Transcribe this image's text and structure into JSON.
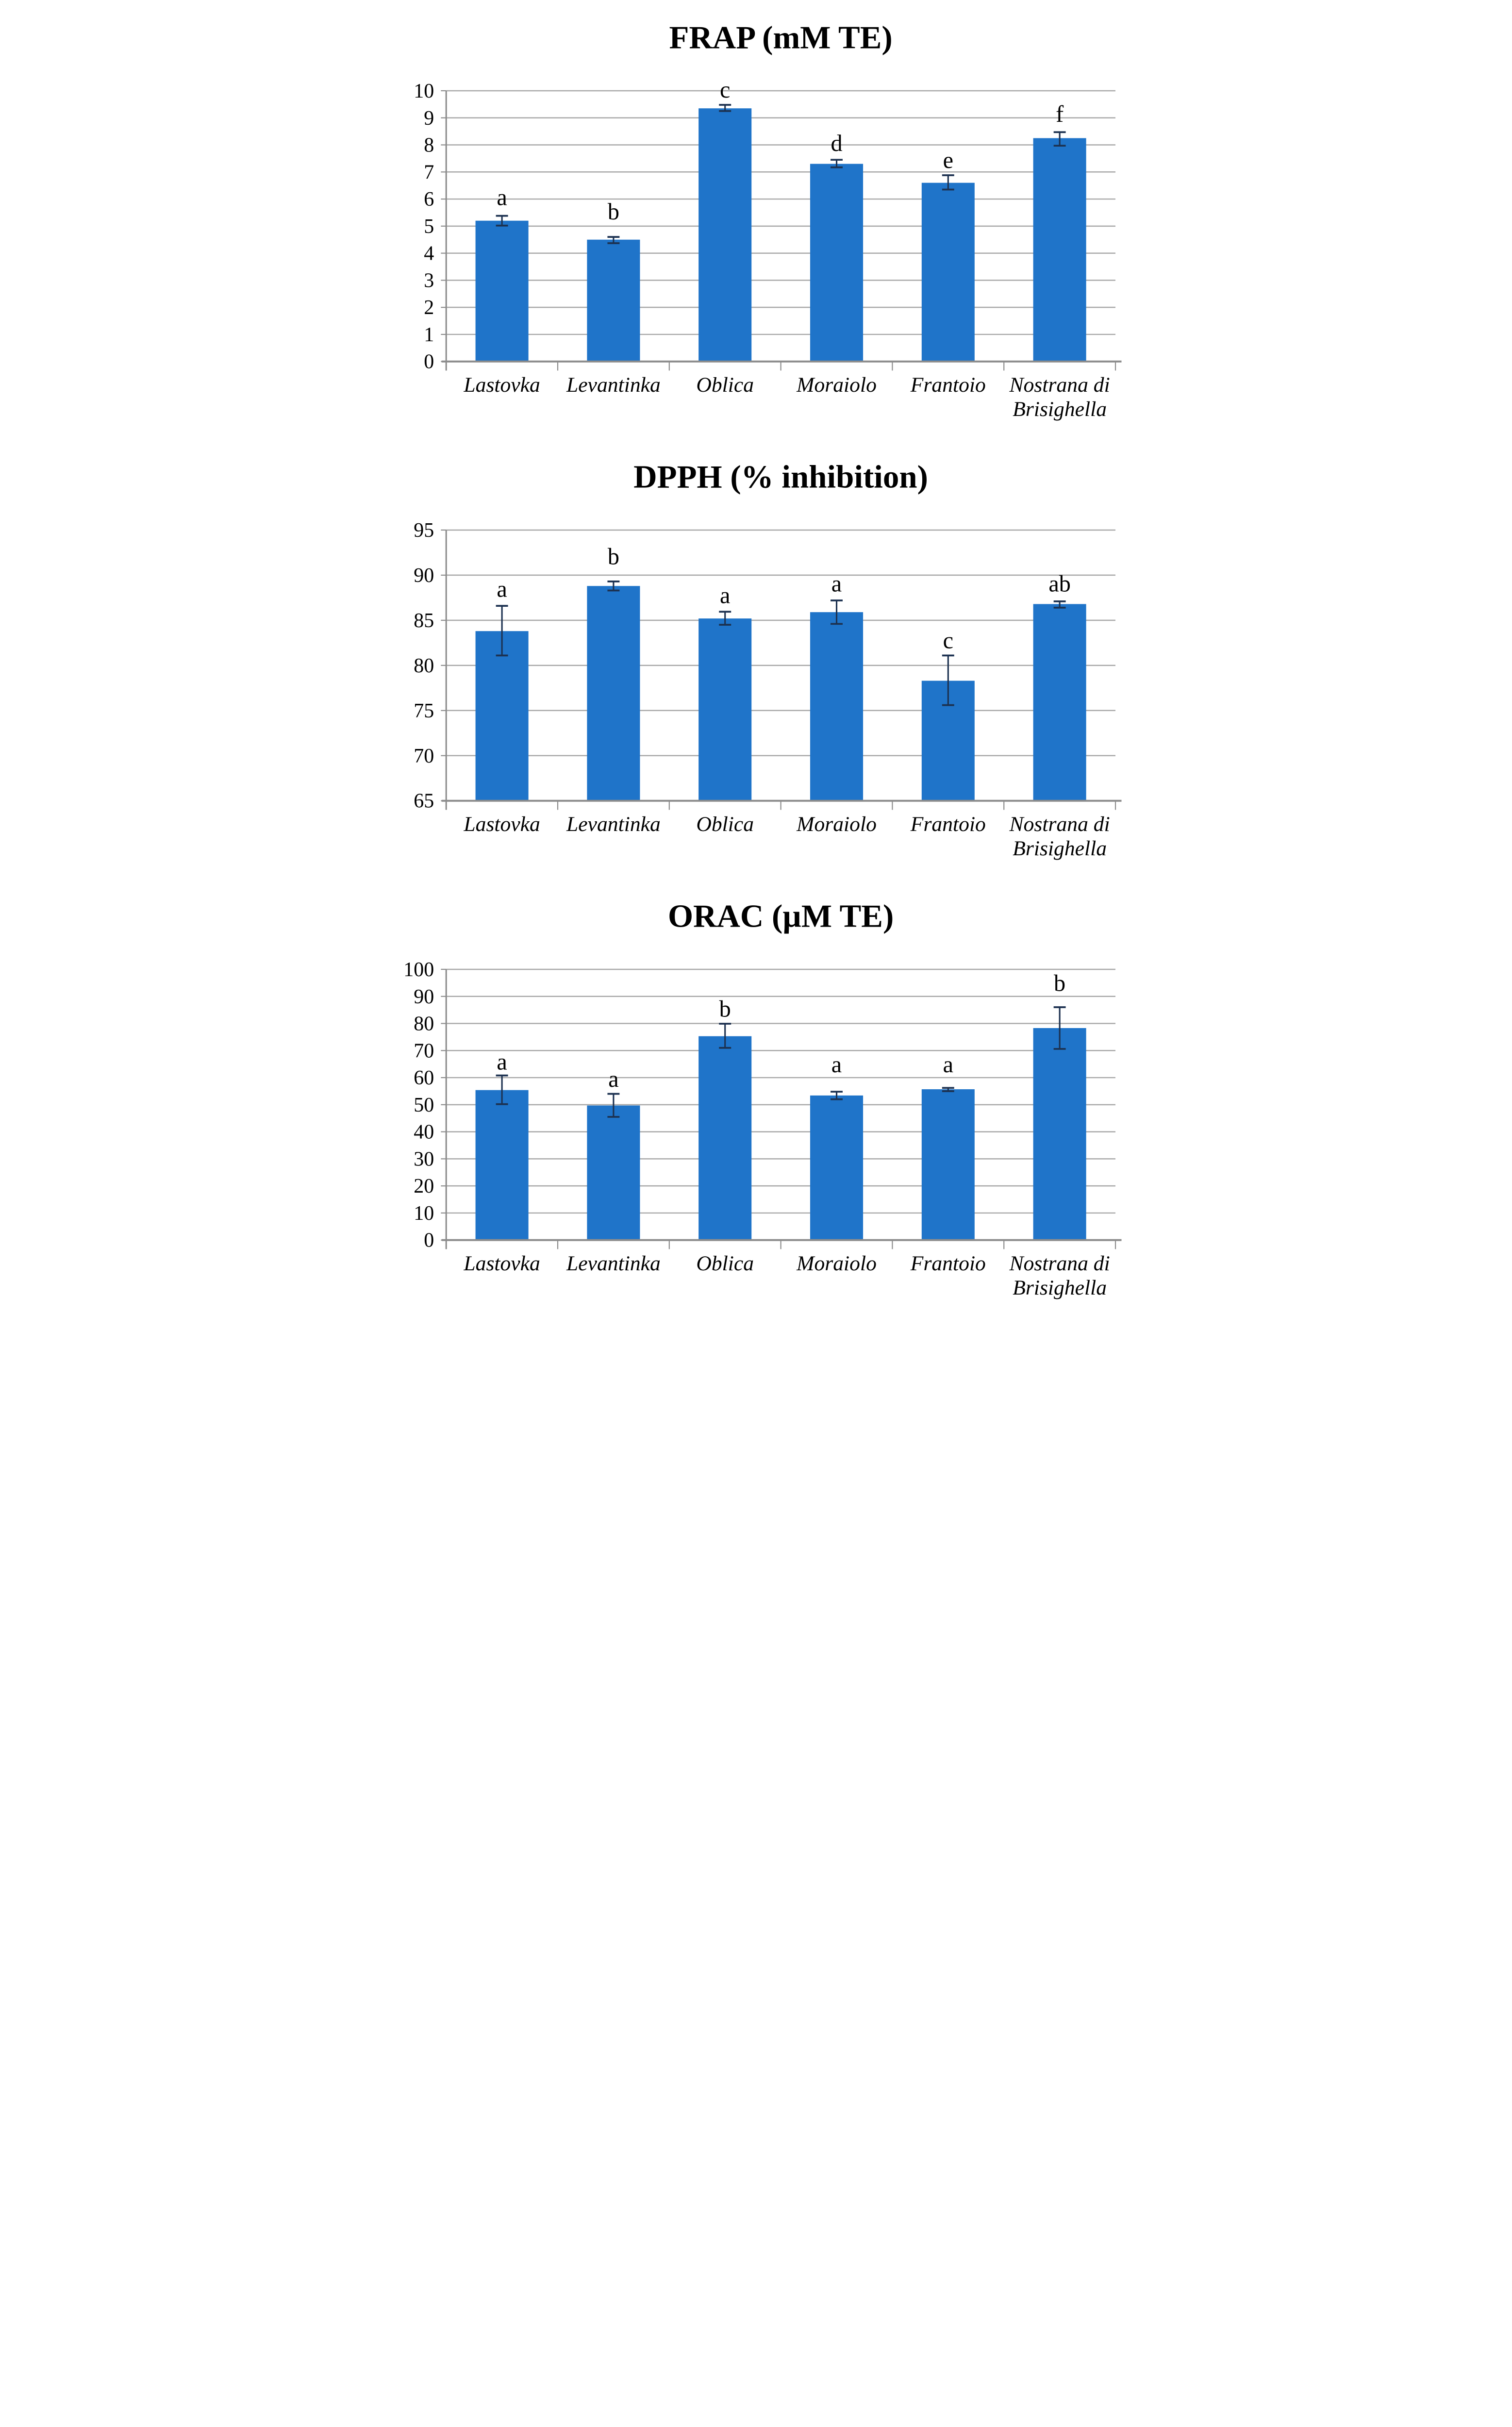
{
  "page": {
    "background": "#FFFFFF"
  },
  "style": {
    "bar_color": "#1F74C9",
    "error_bar_color": "#1C3150",
    "gridline_color": "#A8A8A8",
    "axis_color": "#8C8C8C",
    "text_color": "#000000"
  },
  "chart_data": [
    {
      "type": "bar",
      "title": "FRAP (mM TE)",
      "categories": [
        "Lastovka",
        "Levantinka",
        "Oblica",
        "Moraiolo",
        "Frantoio",
        "Nostrana di Brisighella"
      ],
      "values": [
        5.2,
        4.5,
        9.35,
        7.3,
        6.6,
        8.25
      ],
      "error_low": [
        5.02,
        4.37,
        9.25,
        7.17,
        6.35,
        7.97
      ],
      "error_high": [
        5.38,
        4.6,
        9.48,
        7.45,
        6.88,
        8.47
      ],
      "sig_letters": [
        "a",
        "b",
        "c",
        "d",
        "e",
        "f"
      ],
      "letter_y": [
        5.78,
        5.25,
        9.75,
        7.78,
        7.15,
        8.85
      ],
      "ylim": [
        0,
        10
      ],
      "yticks": [
        0,
        1,
        2,
        3,
        4,
        5,
        6,
        7,
        8,
        9,
        10
      ],
      "xlabel": "",
      "ylabel": "",
      "grid": true,
      "legend": false
    },
    {
      "type": "bar",
      "title": "DPPH (% inhibition)",
      "categories": [
        "Lastovka",
        "Levantinka",
        "Oblica",
        "Moraiolo",
        "Frantoio",
        "Nostrana di Brisighella"
      ],
      "values": [
        83.8,
        88.8,
        85.2,
        85.9,
        78.3,
        86.8
      ],
      "error_low": [
        81.1,
        88.3,
        84.5,
        84.6,
        75.6,
        86.4
      ],
      "error_high": [
        86.6,
        89.3,
        85.95,
        87.2,
        81.1,
        87.1
      ],
      "sig_letters": [
        "a",
        "b",
        "a",
        "a",
        "c",
        "ab"
      ],
      "letter_y": [
        87.6,
        91.2,
        86.9,
        88.2,
        81.9,
        88.2
      ],
      "ylim": [
        65,
        95
      ],
      "yticks": [
        65,
        70,
        75,
        80,
        85,
        90,
        95
      ],
      "xlabel": "",
      "ylabel": "",
      "grid": true,
      "legend": false
    },
    {
      "type": "bar",
      "title": "ORAC (µM TE)",
      "categories": [
        "Lastovka",
        "Levantinka",
        "Oblica",
        "Moraiolo",
        "Frantoio",
        "Nostrana di Brisighella"
      ],
      "values": [
        55.4,
        49.7,
        75.3,
        53.4,
        55.7,
        78.3
      ],
      "error_low": [
        50.2,
        45.5,
        71.0,
        52.0,
        55.0,
        70.6
      ],
      "error_high": [
        60.8,
        54.0,
        79.9,
        54.8,
        56.2,
        86.0
      ],
      "sig_letters": [
        "a",
        "a",
        "b",
        "a",
        "a",
        "b"
      ],
      "letter_y": [
        63.0,
        56.6,
        82.5,
        62.0,
        62.0,
        92.0
      ],
      "ylim": [
        0,
        100
      ],
      "yticks": [
        0,
        10,
        20,
        30,
        40,
        50,
        60,
        70,
        80,
        90,
        100
      ],
      "xlabel": "",
      "ylabel": "",
      "grid": true,
      "legend": false
    }
  ]
}
